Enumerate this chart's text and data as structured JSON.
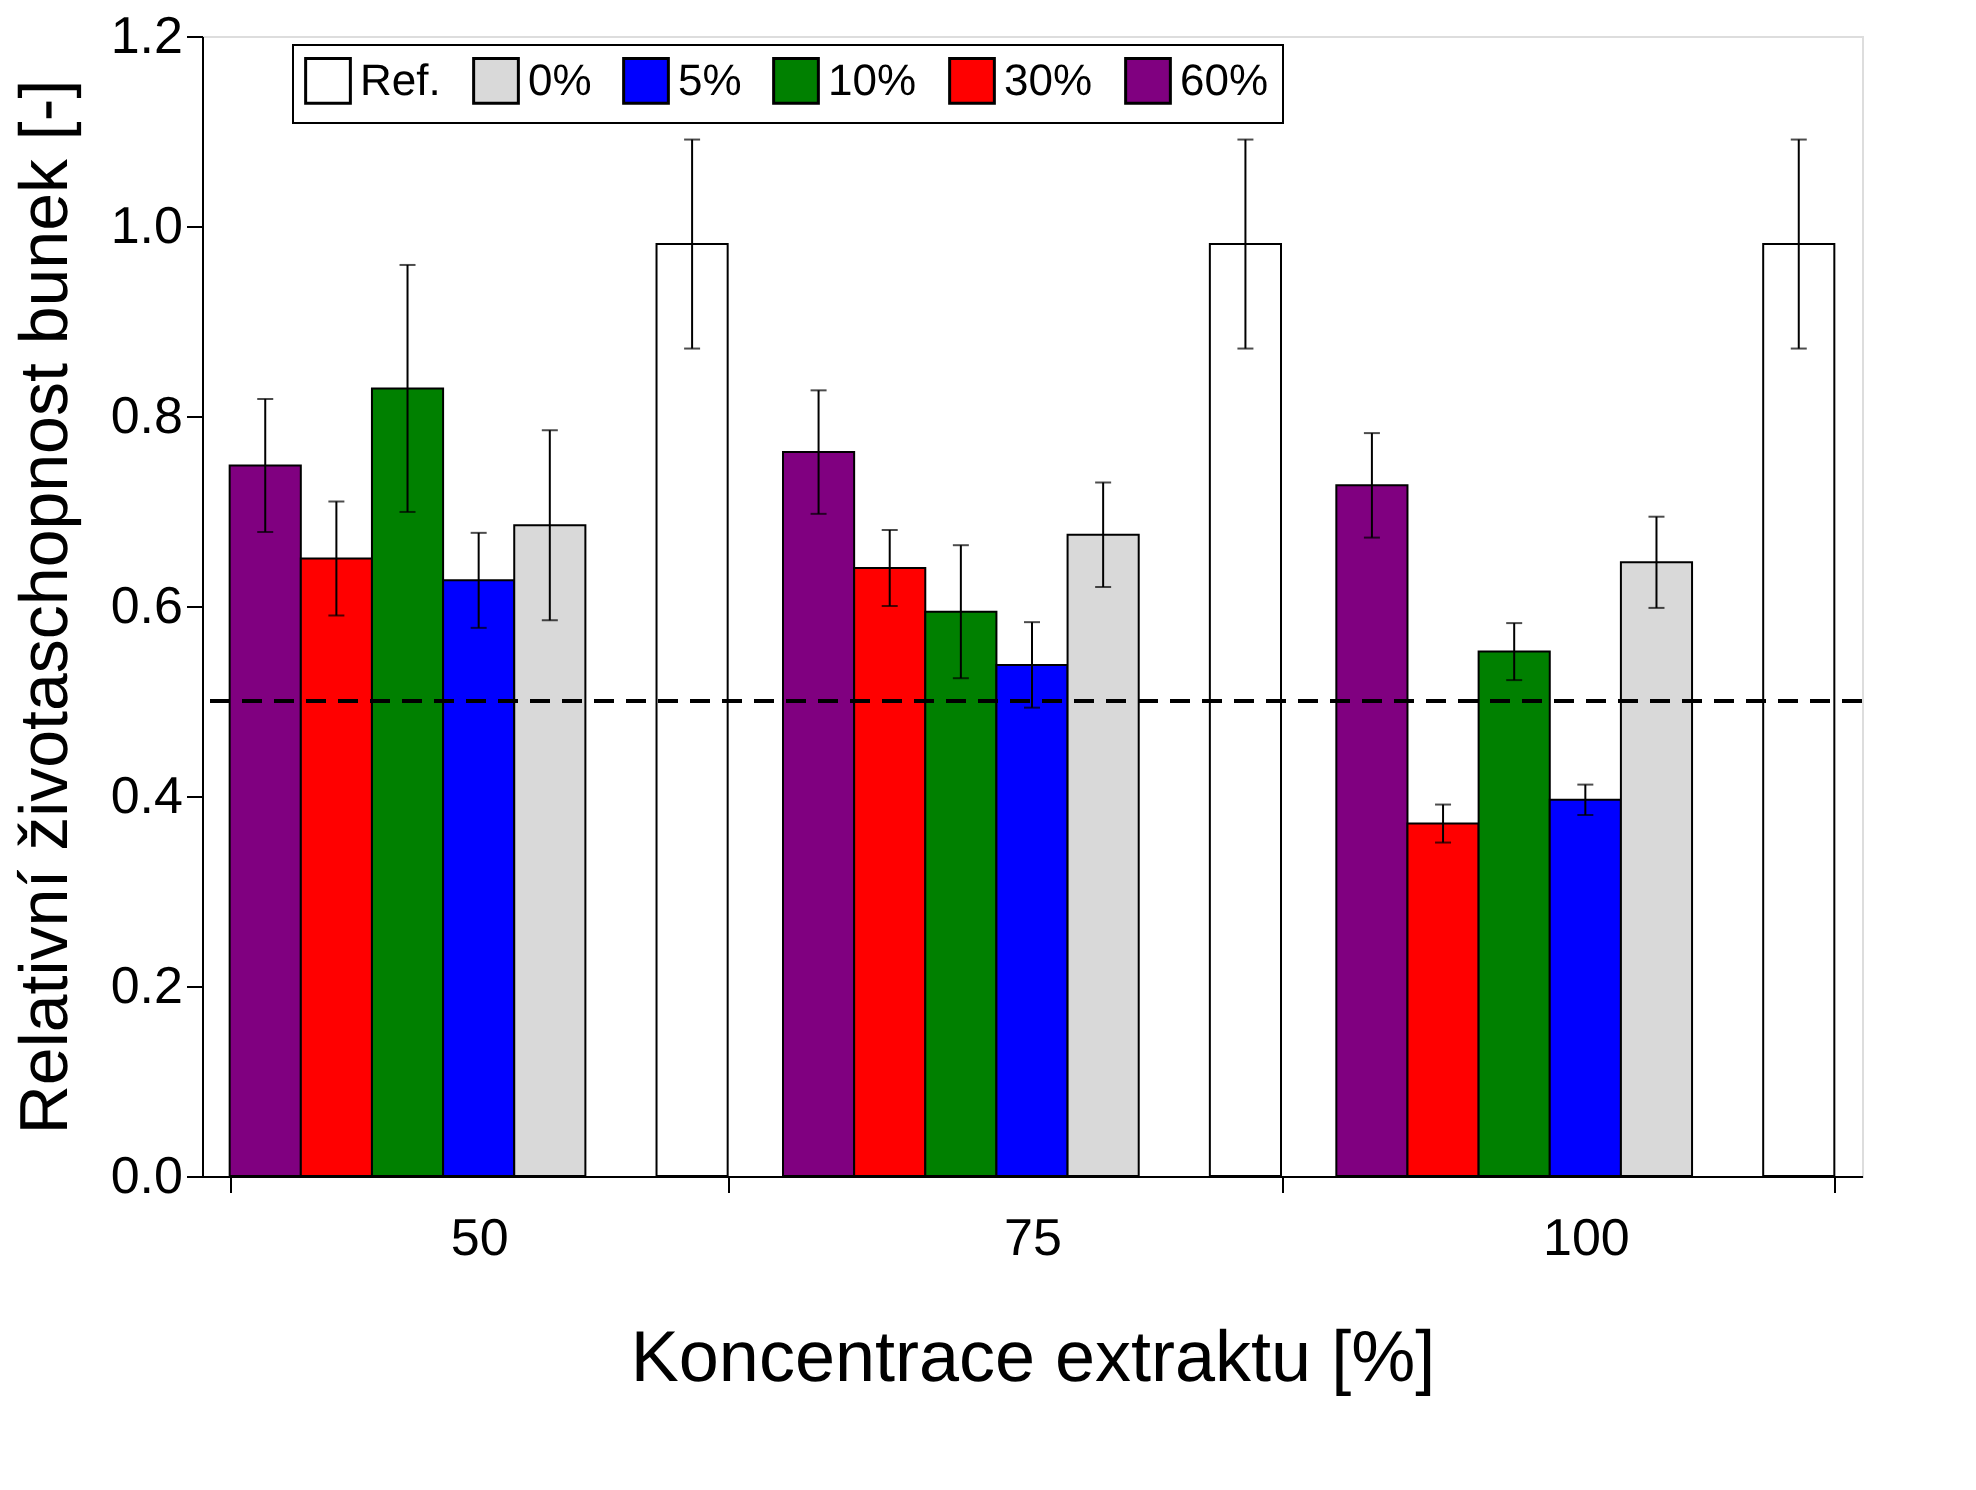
{
  "chart_data": {
    "type": "bar",
    "xlabel": "Koncentrace extraktu [%]",
    "ylabel": "Relativní životaschopnost bunek [-]",
    "categories": [
      "50",
      "75",
      "100"
    ],
    "series": [
      {
        "name": "60%",
        "color": "#800080",
        "values": [
          0.748,
          0.762,
          0.727
        ],
        "errors": [
          0.07,
          0.065,
          0.055
        ]
      },
      {
        "name": "30%",
        "color": "#ff0000",
        "values": [
          0.65,
          0.64,
          0.371
        ],
        "errors": [
          0.06,
          0.04,
          0.02
        ]
      },
      {
        "name": "10%",
        "color": "#008000",
        "values": [
          0.829,
          0.594,
          0.552
        ],
        "errors": [
          0.13,
          0.07,
          0.03
        ]
      },
      {
        "name": "5%",
        "color": "#0000ff",
        "values": [
          0.627,
          0.538,
          0.396
        ],
        "errors": [
          0.05,
          0.045,
          0.016
        ]
      },
      {
        "name": "0%",
        "color": "#d9d9d9",
        "values": [
          0.685,
          0.675,
          0.646
        ],
        "errors": [
          0.1,
          0.055,
          0.048
        ]
      },
      {
        "name": "Ref.",
        "color": "#ffffff",
        "values": [
          0.981,
          0.981,
          0.981
        ],
        "errors": [
          0.11,
          0.11,
          0.11
        ]
      }
    ],
    "ylim": [
      0,
      1.2
    ],
    "yticks": [
      {
        "value": 0,
        "label": "0.0"
      },
      {
        "value": 0.2,
        "label": "0.2"
      },
      {
        "value": 0.4,
        "label": "0.4"
      },
      {
        "value": 0.6,
        "label": "0.6"
      },
      {
        "value": 0.8,
        "label": "0.8"
      },
      {
        "value": 1.0,
        "label": "1.0"
      },
      {
        "value": 1.2,
        "label": "1.2"
      }
    ],
    "ref_lines": [
      {
        "axis": "y",
        "value": 0.5,
        "line_style": "dashed",
        "color": "#000000"
      }
    ],
    "legend": "top",
    "grid": false
  }
}
